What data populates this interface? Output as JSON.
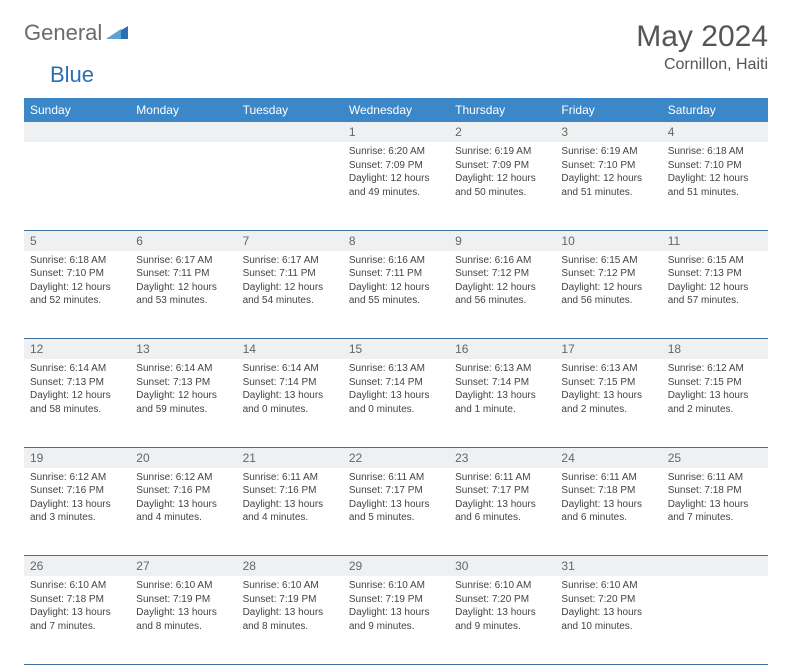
{
  "brand": {
    "part1": "General",
    "part2": "Blue"
  },
  "title": "May 2024",
  "location": "Cornillon, Haiti",
  "colors": {
    "header_bg": "#3b87c8",
    "header_text": "#ffffff",
    "daynum_bg": "#eef0f2",
    "border": "#3b6fa0",
    "brand_grey": "#6b6b6b",
    "brand_blue": "#2d6fb3"
  },
  "weekday_labels": [
    "Sunday",
    "Monday",
    "Tuesday",
    "Wednesday",
    "Thursday",
    "Friday",
    "Saturday"
  ],
  "weeks": [
    [
      null,
      null,
      null,
      {
        "n": "1",
        "sr": "6:20 AM",
        "ss": "7:09 PM",
        "dl": "12 hours and 49 minutes."
      },
      {
        "n": "2",
        "sr": "6:19 AM",
        "ss": "7:09 PM",
        "dl": "12 hours and 50 minutes."
      },
      {
        "n": "3",
        "sr": "6:19 AM",
        "ss": "7:10 PM",
        "dl": "12 hours and 51 minutes."
      },
      {
        "n": "4",
        "sr": "6:18 AM",
        "ss": "7:10 PM",
        "dl": "12 hours and 51 minutes."
      }
    ],
    [
      {
        "n": "5",
        "sr": "6:18 AM",
        "ss": "7:10 PM",
        "dl": "12 hours and 52 minutes."
      },
      {
        "n": "6",
        "sr": "6:17 AM",
        "ss": "7:11 PM",
        "dl": "12 hours and 53 minutes."
      },
      {
        "n": "7",
        "sr": "6:17 AM",
        "ss": "7:11 PM",
        "dl": "12 hours and 54 minutes."
      },
      {
        "n": "8",
        "sr": "6:16 AM",
        "ss": "7:11 PM",
        "dl": "12 hours and 55 minutes."
      },
      {
        "n": "9",
        "sr": "6:16 AM",
        "ss": "7:12 PM",
        "dl": "12 hours and 56 minutes."
      },
      {
        "n": "10",
        "sr": "6:15 AM",
        "ss": "7:12 PM",
        "dl": "12 hours and 56 minutes."
      },
      {
        "n": "11",
        "sr": "6:15 AM",
        "ss": "7:13 PM",
        "dl": "12 hours and 57 minutes."
      }
    ],
    [
      {
        "n": "12",
        "sr": "6:14 AM",
        "ss": "7:13 PM",
        "dl": "12 hours and 58 minutes."
      },
      {
        "n": "13",
        "sr": "6:14 AM",
        "ss": "7:13 PM",
        "dl": "12 hours and 59 minutes."
      },
      {
        "n": "14",
        "sr": "6:14 AM",
        "ss": "7:14 PM",
        "dl": "13 hours and 0 minutes."
      },
      {
        "n": "15",
        "sr": "6:13 AM",
        "ss": "7:14 PM",
        "dl": "13 hours and 0 minutes."
      },
      {
        "n": "16",
        "sr": "6:13 AM",
        "ss": "7:14 PM",
        "dl": "13 hours and 1 minute."
      },
      {
        "n": "17",
        "sr": "6:13 AM",
        "ss": "7:15 PM",
        "dl": "13 hours and 2 minutes."
      },
      {
        "n": "18",
        "sr": "6:12 AM",
        "ss": "7:15 PM",
        "dl": "13 hours and 2 minutes."
      }
    ],
    [
      {
        "n": "19",
        "sr": "6:12 AM",
        "ss": "7:16 PM",
        "dl": "13 hours and 3 minutes."
      },
      {
        "n": "20",
        "sr": "6:12 AM",
        "ss": "7:16 PM",
        "dl": "13 hours and 4 minutes."
      },
      {
        "n": "21",
        "sr": "6:11 AM",
        "ss": "7:16 PM",
        "dl": "13 hours and 4 minutes."
      },
      {
        "n": "22",
        "sr": "6:11 AM",
        "ss": "7:17 PM",
        "dl": "13 hours and 5 minutes."
      },
      {
        "n": "23",
        "sr": "6:11 AM",
        "ss": "7:17 PM",
        "dl": "13 hours and 6 minutes."
      },
      {
        "n": "24",
        "sr": "6:11 AM",
        "ss": "7:18 PM",
        "dl": "13 hours and 6 minutes."
      },
      {
        "n": "25",
        "sr": "6:11 AM",
        "ss": "7:18 PM",
        "dl": "13 hours and 7 minutes."
      }
    ],
    [
      {
        "n": "26",
        "sr": "6:10 AM",
        "ss": "7:18 PM",
        "dl": "13 hours and 7 minutes."
      },
      {
        "n": "27",
        "sr": "6:10 AM",
        "ss": "7:19 PM",
        "dl": "13 hours and 8 minutes."
      },
      {
        "n": "28",
        "sr": "6:10 AM",
        "ss": "7:19 PM",
        "dl": "13 hours and 8 minutes."
      },
      {
        "n": "29",
        "sr": "6:10 AM",
        "ss": "7:19 PM",
        "dl": "13 hours and 9 minutes."
      },
      {
        "n": "30",
        "sr": "6:10 AM",
        "ss": "7:20 PM",
        "dl": "13 hours and 9 minutes."
      },
      {
        "n": "31",
        "sr": "6:10 AM",
        "ss": "7:20 PM",
        "dl": "13 hours and 10 minutes."
      },
      null
    ]
  ],
  "labels": {
    "sunrise": "Sunrise:",
    "sunset": "Sunset:",
    "daylight": "Daylight:"
  }
}
